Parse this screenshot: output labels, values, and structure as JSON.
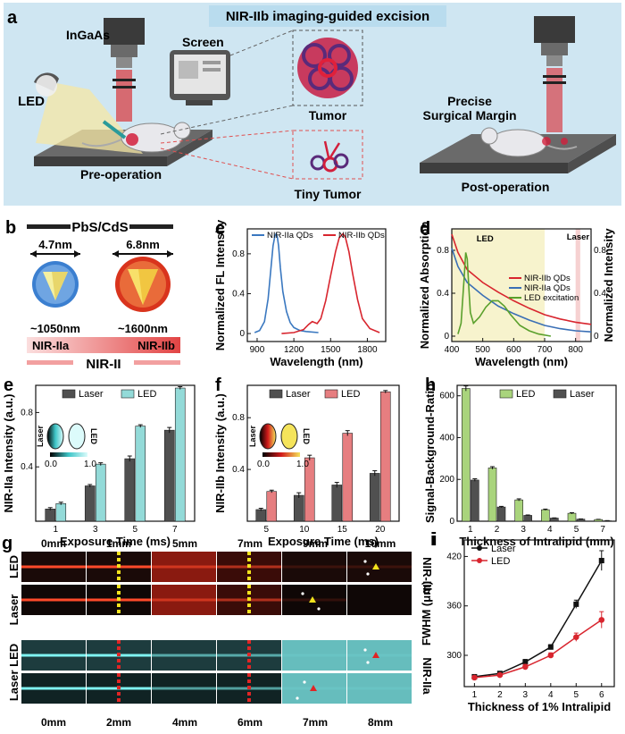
{
  "panel_a": {
    "letter": "a",
    "banner": "NIR-IIb imaging-guided excision",
    "ingaas": "InGaAs",
    "screen": "Screen",
    "led": "LED",
    "tumor": "Tumor",
    "tiny_tumor": "Tiny Tumor",
    "pre_op": "Pre-operation",
    "post_op": "Post-operation",
    "margin_line1": "Precise",
    "margin_line2": "Surgical Margin",
    "colors": {
      "bg": "#cfe6f2",
      "banner": "#b9dcee",
      "laser": "#d8343a",
      "tumor": "#d21f3c",
      "led_light": "#f6e7a4",
      "stage": "#5a5a5a"
    }
  },
  "panel_b": {
    "letter": "b",
    "title": "PbS/CdS",
    "size1": "4.7nm",
    "size2": "6.8nm",
    "em1": "~1050nm",
    "em2": "~1600nm",
    "band_left": "NIR-IIa",
    "band_right": "NIR-IIb",
    "band_bottom": "NIR-II",
    "colors": {
      "qd1": "#3b7fd0",
      "qd2": "#d9341d",
      "band": "#e24444"
    }
  },
  "chart_data": [
    {
      "id": "c",
      "type": "line",
      "letter": "c",
      "xlabel": "Wavelength (nm)",
      "ylabel": "Normalized FL Intensity",
      "xlim": [
        820,
        1950
      ],
      "ylim": [
        -0.08,
        1.05
      ],
      "xticks": [
        900,
        1200,
        1500,
        1800
      ],
      "yticks": [
        0.0,
        0.4,
        0.8
      ],
      "legend_position": "top",
      "series": [
        {
          "name": "NIR-IIa QDs",
          "color": "#3a78c0",
          "x": [
            880,
            920,
            960,
            990,
            1010,
            1030,
            1045,
            1055,
            1065,
            1075,
            1090,
            1110,
            1140,
            1170,
            1200,
            1250,
            1300,
            1400
          ],
          "y": [
            0.01,
            0.03,
            0.12,
            0.35,
            0.62,
            0.88,
            0.98,
            1.0,
            0.97,
            0.88,
            0.66,
            0.42,
            0.22,
            0.11,
            0.06,
            0.03,
            0.02,
            0.01
          ]
        },
        {
          "name": "NIR-IIb QDs",
          "color": "#d8252e",
          "x": [
            1100,
            1200,
            1280,
            1320,
            1350,
            1370,
            1390,
            1420,
            1460,
            1500,
            1540,
            1570,
            1600,
            1620,
            1650,
            1680,
            1720,
            1760,
            1820,
            1900
          ],
          "y": [
            0.0,
            0.01,
            0.04,
            0.09,
            0.12,
            0.11,
            0.1,
            0.15,
            0.33,
            0.58,
            0.82,
            0.96,
            1.0,
            0.97,
            0.82,
            0.6,
            0.34,
            0.15,
            0.05,
            0.01
          ]
        }
      ]
    },
    {
      "id": "d",
      "type": "line",
      "letter": "d",
      "xlabel": "Wavelength (nm)",
      "ylabel": "Normalized Absorption",
      "y2label": "Normalized Intensity",
      "xlim": [
        400,
        850
      ],
      "ylim": [
        -0.05,
        1.0
      ],
      "xticks": [
        400,
        500,
        600,
        700,
        800
      ],
      "yticks": [
        0.0,
        0.4,
        0.8
      ],
      "annotations": [
        "LED",
        "Laser"
      ],
      "shaded_regions": [
        {
          "label": "LED",
          "x": [
            400,
            700
          ],
          "color": "#f5f0c0"
        },
        {
          "label": "Laser",
          "x": [
            800,
            815
          ],
          "color": "#f4c6c6"
        }
      ],
      "legend_position": "middle-right",
      "series": [
        {
          "name": "NIR-IIb QDs",
          "color": "#d8252e",
          "x": [
            400,
            420,
            450,
            500,
            550,
            600,
            650,
            700,
            750,
            800,
            850
          ],
          "y": [
            0.95,
            0.78,
            0.62,
            0.5,
            0.41,
            0.33,
            0.26,
            0.2,
            0.16,
            0.13,
            0.11
          ]
        },
        {
          "name": "NIR-IIa QDs",
          "color": "#3a6fb5",
          "x": [
            400,
            420,
            450,
            500,
            550,
            600,
            650,
            700,
            750,
            800,
            850
          ],
          "y": [
            0.82,
            0.65,
            0.5,
            0.38,
            0.28,
            0.21,
            0.15,
            0.1,
            0.07,
            0.05,
            0.04
          ]
        },
        {
          "name": "LED excitation",
          "color": "#5aa02c",
          "x": [
            420,
            430,
            440,
            445,
            450,
            455,
            460,
            470,
            490,
            510,
            530,
            550,
            570,
            590,
            620,
            650,
            680,
            720
          ],
          "y": [
            0.02,
            0.12,
            0.55,
            0.78,
            0.72,
            0.45,
            0.22,
            0.12,
            0.18,
            0.27,
            0.33,
            0.33,
            0.28,
            0.2,
            0.1,
            0.05,
            0.02,
            0.0
          ]
        }
      ]
    },
    {
      "id": "e",
      "type": "bar",
      "letter": "e",
      "xlabel": "Exposure Time (ms)",
      "ylabel": "NIR-IIa Intensity (a.u.)",
      "categories": [
        "1",
        "3",
        "5",
        "7"
      ],
      "ylim": [
        0,
        1.0
      ],
      "yticks": [
        0.4,
        0.8
      ],
      "legend_position": "top",
      "colorbar": {
        "min": "0.0",
        "max": "1.0",
        "left_label": "Laser",
        "right_label": "LED",
        "gradient": [
          "#000000",
          "#3ec6c8",
          "#dcfbfb"
        ]
      },
      "series": [
        {
          "name": "Laser",
          "color": "#505050",
          "values": [
            0.09,
            0.26,
            0.46,
            0.67
          ],
          "errors": [
            0.01,
            0.01,
            0.02,
            0.02
          ]
        },
        {
          "name": "LED",
          "color": "#93dad8",
          "values": [
            0.13,
            0.42,
            0.7,
            0.98
          ],
          "errors": [
            0.01,
            0.01,
            0.01,
            0.01
          ]
        }
      ]
    },
    {
      "id": "f",
      "type": "bar",
      "letter": "f",
      "xlabel": "Exposure Time (ms)",
      "ylabel": "NIR-IIb Intensity (a.u.)",
      "categories": [
        "5",
        "10",
        "15",
        "20"
      ],
      "ylim": [
        0,
        1.05
      ],
      "yticks": [
        0.4,
        0.8
      ],
      "legend_position": "top",
      "colorbar": {
        "min": "0.0",
        "max": "1.0",
        "left_label": "Laser",
        "right_label": "LED",
        "gradient": [
          "#000000",
          "#d21b1b",
          "#f5e45b"
        ]
      },
      "series": [
        {
          "name": "Laser",
          "color": "#505050",
          "values": [
            0.09,
            0.2,
            0.28,
            0.37
          ],
          "errors": [
            0.01,
            0.02,
            0.02,
            0.02
          ]
        },
        {
          "name": "LED",
          "color": "#e67e80",
          "values": [
            0.23,
            0.49,
            0.68,
            1.0
          ],
          "errors": [
            0.01,
            0.02,
            0.02,
            0.01
          ]
        }
      ]
    },
    {
      "id": "h",
      "type": "bar",
      "letter": "h",
      "xlabel": "Thickness of Intralipid (mm)",
      "ylabel": "Signal-Background-Ratio",
      "categories": [
        "1",
        "2",
        "3",
        "4",
        "5",
        "7"
      ],
      "ylim": [
        0,
        650
      ],
      "yticks": [
        0,
        200,
        400,
        600
      ],
      "legend_position": "top",
      "series": [
        {
          "name": "LED",
          "color": "#a9d47c",
          "values": [
            635,
            255,
            102,
            55,
            38,
            8
          ],
          "errors": [
            12,
            6,
            5,
            3,
            3,
            1
          ]
        },
        {
          "name": "Laser",
          "color": "#505050",
          "values": [
            197,
            68,
            28,
            15,
            10,
            2
          ],
          "errors": [
            6,
            3,
            2,
            1,
            1,
            1
          ]
        }
      ]
    },
    {
      "id": "i",
      "type": "line",
      "letter": "i",
      "xlabel": "Thickness of 1% Intralipid",
      "ylabel": "FWHM (μm)",
      "x": [
        1,
        2,
        3,
        4,
        5,
        6
      ],
      "xlim": [
        0.6,
        6.5
      ],
      "ylim": [
        262,
        440
      ],
      "xticks": [
        1,
        2,
        3,
        4,
        5,
        6
      ],
      "yticks": [
        300,
        360,
        420
      ],
      "legend_position": "top-left",
      "series": [
        {
          "name": "Laser",
          "color": "#111111",
          "values": [
            274,
            278,
            292,
            310,
            362,
            415
          ],
          "errors": [
            2,
            2,
            3,
            3,
            5,
            12
          ]
        },
        {
          "name": "LED",
          "color": "#d8252e",
          "values": [
            273,
            276,
            286,
            300,
            322,
            343
          ],
          "errors": [
            2,
            2,
            3,
            3,
            5,
            10
          ]
        }
      ]
    }
  ],
  "panel_g": {
    "letter": "g",
    "top_labels": [
      "0mm",
      "1mm",
      "5mm",
      "7mm",
      "9mm",
      "10mm"
    ],
    "bottom_labels": [
      "0mm",
      "2mm",
      "4mm",
      "6mm",
      "7mm",
      "8mm"
    ],
    "row_labels": [
      "LED",
      "Laser",
      "Laser LED"
    ],
    "side_labels": [
      "NIR-IIb",
      "NIR-IIa"
    ],
    "colors": {
      "iib_line": "#ff4a2a",
      "iia_line": "#7ff3f2",
      "iia_bg": "#66bdbd",
      "marker_yellow": "#f2e31d",
      "marker_red": "#e02525"
    }
  }
}
